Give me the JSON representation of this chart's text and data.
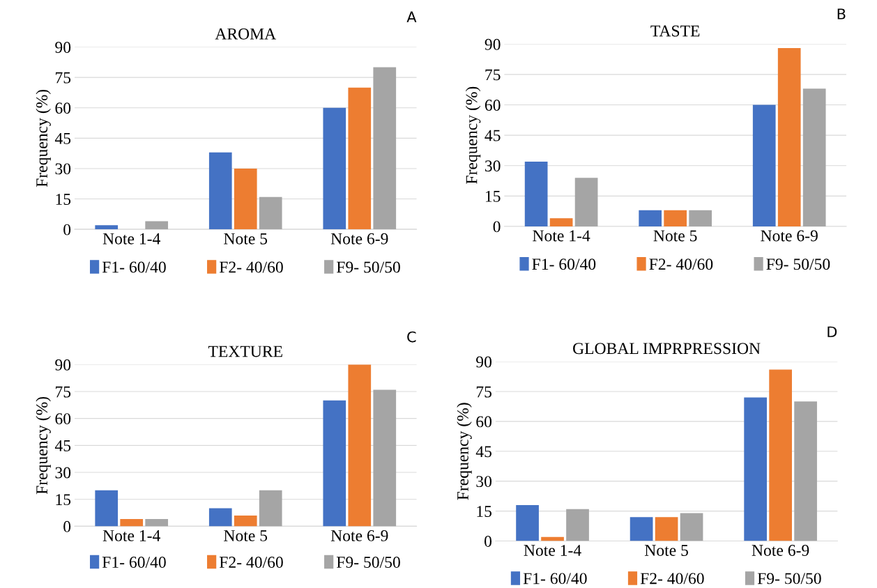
{
  "chart_data": [
    {
      "type": "bar",
      "title": "AROMA",
      "ylabel": "Frequency (%)",
      "annotations": [
        "A"
      ],
      "categories": [
        "Note 1-4",
        "Note 5",
        "Note 6-9"
      ],
      "ylim": [
        0,
        90
      ],
      "yticks": [
        0,
        15,
        30,
        45,
        60,
        75,
        90
      ],
      "grid": "y",
      "legend": "bottom",
      "series": [
        {
          "name": "F1- 60/40",
          "color": "#4472c4",
          "values": [
            2,
            38,
            60
          ]
        },
        {
          "name": "F2- 40/60",
          "color": "#ed7d31",
          "values": [
            0,
            30,
            70
          ]
        },
        {
          "name": "F9- 50/50",
          "color": "#a5a5a5",
          "values": [
            4,
            16,
            80
          ]
        }
      ]
    },
    {
      "type": "bar",
      "title": "TASTE",
      "ylabel": "Frequency (%)",
      "annotations": [
        "B"
      ],
      "categories": [
        "Note 1-4",
        "Note 5",
        "Note 6-9"
      ],
      "ylim": [
        0,
        90
      ],
      "yticks": [
        0,
        15,
        30,
        45,
        60,
        75,
        90
      ],
      "grid": "y",
      "legend": "bottom",
      "series": [
        {
          "name": "F1- 60/40",
          "color": "#4472c4",
          "values": [
            32,
            8,
            60
          ]
        },
        {
          "name": "F2- 40/60",
          "color": "#ed7d31",
          "values": [
            4,
            8,
            88
          ]
        },
        {
          "name": "F9- 50/50",
          "color": "#a5a5a5",
          "values": [
            24,
            8,
            68
          ]
        }
      ]
    },
    {
      "type": "bar",
      "title": "TEXTURE",
      "ylabel": "Frequency (%)",
      "annotations": [
        "C"
      ],
      "categories": [
        "Note 1-4",
        "Note 5",
        "Note 6-9"
      ],
      "ylim": [
        0,
        90
      ],
      "yticks": [
        0,
        15,
        30,
        45,
        60,
        75,
        90
      ],
      "grid": "y",
      "legend": "bottom",
      "series": [
        {
          "name": "F1- 60/40",
          "color": "#4472c4",
          "values": [
            20,
            10,
            70
          ]
        },
        {
          "name": "F2- 40/60",
          "color": "#ed7d31",
          "values": [
            4,
            6,
            90
          ]
        },
        {
          "name": "F9- 50/50",
          "color": "#a5a5a5",
          "values": [
            4,
            20,
            76
          ]
        }
      ]
    },
    {
      "type": "bar",
      "title": "GLOBAL IMPRPRESSION",
      "ylabel": "Frequency (%)",
      "annotations": [
        "D"
      ],
      "categories": [
        "Note 1-4",
        "Note 5",
        "Note 6-9"
      ],
      "ylim": [
        0,
        90
      ],
      "yticks": [
        0,
        15,
        30,
        45,
        60,
        75,
        90
      ],
      "grid": "y",
      "legend": "bottom",
      "series": [
        {
          "name": "F1- 60/40",
          "color": "#4472c4",
          "values": [
            18,
            12,
            72
          ]
        },
        {
          "name": "F2- 40/60",
          "color": "#ed7d31",
          "values": [
            2,
            12,
            86
          ]
        },
        {
          "name": "F9- 50/50",
          "color": "#a5a5a5",
          "values": [
            16,
            14,
            70
          ]
        }
      ]
    }
  ]
}
